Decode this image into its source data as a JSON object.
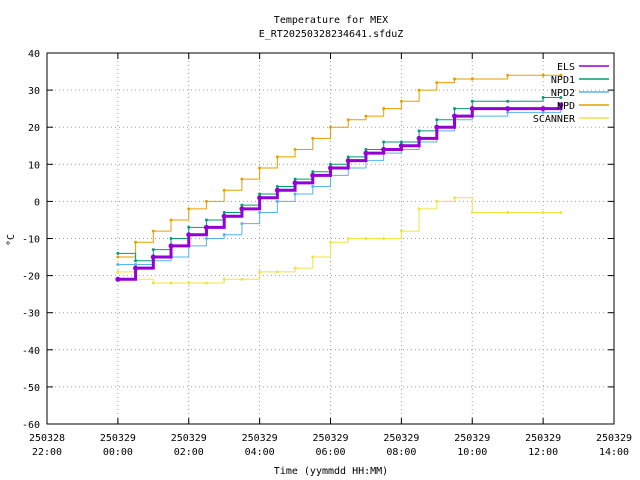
{
  "chart_data": {
    "type": "line",
    "title": "Temperature for MEX",
    "subtitle": "E_RT20250328234641.sfduZ",
    "xlabel": "Time (yymmdd HH:MM)",
    "ylabel": "°C",
    "xlim": [
      "2025-03-28 22:00",
      "2025-03-29 14:00"
    ],
    "ylim": [
      -60,
      40
    ],
    "grid": true,
    "legend_position": "top-right",
    "x_ticks": [
      {
        "date": "250328",
        "time": "22:00"
      },
      {
        "date": "250329",
        "time": "00:00"
      },
      {
        "date": "250329",
        "time": "02:00"
      },
      {
        "date": "250329",
        "time": "04:00"
      },
      {
        "date": "250329",
        "time": "06:00"
      },
      {
        "date": "250329",
        "time": "08:00"
      },
      {
        "date": "250329",
        "time": "10:00"
      },
      {
        "date": "250329",
        "time": "12:00"
      },
      {
        "date": "250329",
        "time": "14:00"
      }
    ],
    "y_ticks": [
      "40",
      "30",
      "20",
      "10",
      "0",
      "-10",
      "-20",
      "-30",
      "-40",
      "-50",
      "-60"
    ],
    "series": [
      {
        "name": "ELS",
        "color": "#9400d3",
        "x": [
          "2025-03-29 00:00",
          "2025-03-29 00:30",
          "2025-03-29 01:00",
          "2025-03-29 01:30",
          "2025-03-29 02:00",
          "2025-03-29 02:30",
          "2025-03-29 03:00",
          "2025-03-29 03:30",
          "2025-03-29 04:00",
          "2025-03-29 04:30",
          "2025-03-29 05:00",
          "2025-03-29 05:30",
          "2025-03-29 06:00",
          "2025-03-29 06:30",
          "2025-03-29 07:00",
          "2025-03-29 07:30",
          "2025-03-29 08:00",
          "2025-03-29 08:30",
          "2025-03-29 09:00",
          "2025-03-29 09:30",
          "2025-03-29 10:00",
          "2025-03-29 11:00",
          "2025-03-29 12:00",
          "2025-03-29 12:30"
        ],
        "y": [
          -21,
          -18,
          -15,
          -12,
          -9,
          -7,
          -4,
          -2,
          1,
          3,
          5,
          7,
          9,
          11,
          13,
          14,
          15,
          17,
          20,
          23,
          25,
          25,
          25,
          26
        ]
      },
      {
        "name": "NPD1",
        "color": "#009e73",
        "x": [
          "2025-03-29 00:00",
          "2025-03-29 00:30",
          "2025-03-29 01:00",
          "2025-03-29 01:30",
          "2025-03-29 02:00",
          "2025-03-29 02:30",
          "2025-03-29 03:00",
          "2025-03-29 03:30",
          "2025-03-29 04:00",
          "2025-03-29 04:30",
          "2025-03-29 05:00",
          "2025-03-29 05:30",
          "2025-03-29 06:00",
          "2025-03-29 06:30",
          "2025-03-29 07:00",
          "2025-03-29 07:30",
          "2025-03-29 08:00",
          "2025-03-29 08:30",
          "2025-03-29 09:00",
          "2025-03-29 09:30",
          "2025-03-29 10:00",
          "2025-03-29 11:00",
          "2025-03-29 12:00",
          "2025-03-29 12:30"
        ],
        "y": [
          -14,
          -16,
          -13,
          -10,
          -7,
          -5,
          -3,
          -1,
          2,
          4,
          6,
          8,
          10,
          12,
          14,
          16,
          16,
          19,
          22,
          25,
          27,
          27,
          28,
          28
        ]
      },
      {
        "name": "NPD2",
        "color": "#56b4e9",
        "x": [
          "2025-03-29 00:00",
          "2025-03-29 00:30",
          "2025-03-29 01:00",
          "2025-03-29 01:30",
          "2025-03-29 02:00",
          "2025-03-29 02:30",
          "2025-03-29 03:00",
          "2025-03-29 03:30",
          "2025-03-29 04:00",
          "2025-03-29 04:30",
          "2025-03-29 05:00",
          "2025-03-29 05:30",
          "2025-03-29 06:00",
          "2025-03-29 06:30",
          "2025-03-29 07:00",
          "2025-03-29 07:30",
          "2025-03-29 08:00",
          "2025-03-29 08:30",
          "2025-03-29 09:00",
          "2025-03-29 09:30",
          "2025-03-29 10:00",
          "2025-03-29 11:00",
          "2025-03-29 12:00",
          "2025-03-29 12:30"
        ],
        "y": [
          -17,
          -17,
          -16,
          -15,
          -12,
          -10,
          -9,
          -6,
          -3,
          0,
          2,
          4,
          7,
          9,
          11,
          13,
          14,
          16,
          19,
          22,
          23,
          24,
          24,
          25
        ]
      },
      {
        "name": "NPD",
        "color": "#e69f00",
        "x": [
          "2025-03-29 00:00",
          "2025-03-29 00:30",
          "2025-03-29 01:00",
          "2025-03-29 01:30",
          "2025-03-29 02:00",
          "2025-03-29 02:30",
          "2025-03-29 03:00",
          "2025-03-29 03:30",
          "2025-03-29 04:00",
          "2025-03-29 04:30",
          "2025-03-29 05:00",
          "2025-03-29 05:30",
          "2025-03-29 06:00",
          "2025-03-29 06:30",
          "2025-03-29 07:00",
          "2025-03-29 07:30",
          "2025-03-29 08:00",
          "2025-03-29 08:30",
          "2025-03-29 09:00",
          "2025-03-29 09:30",
          "2025-03-29 10:00",
          "2025-03-29 11:00",
          "2025-03-29 12:00",
          "2025-03-29 12:30"
        ],
        "y": [
          -15,
          -11,
          -8,
          -5,
          -2,
          0,
          3,
          6,
          9,
          12,
          14,
          17,
          20,
          22,
          23,
          25,
          27,
          30,
          32,
          33,
          33,
          34,
          34,
          34
        ]
      },
      {
        "name": "SCANNER",
        "color": "#f0e442",
        "x": [
          "2025-03-29 00:00",
          "2025-03-29 00:30",
          "2025-03-29 01:00",
          "2025-03-29 01:30",
          "2025-03-29 02:00",
          "2025-03-29 02:30",
          "2025-03-29 03:00",
          "2025-03-29 03:30",
          "2025-03-29 04:00",
          "2025-03-29 04:30",
          "2025-03-29 05:00",
          "2025-03-29 05:30",
          "2025-03-29 06:00",
          "2025-03-29 06:30",
          "2025-03-29 07:00",
          "2025-03-29 07:30",
          "2025-03-29 08:00",
          "2025-03-29 08:30",
          "2025-03-29 09:00",
          "2025-03-29 09:30",
          "2025-03-29 10:00",
          "2025-03-29 11:00",
          "2025-03-29 12:00",
          "2025-03-29 12:30"
        ],
        "y": [
          -19,
          -21,
          -22,
          -22,
          -22,
          -22,
          -21,
          -21,
          -19,
          -19,
          -18,
          -15,
          -11,
          -10,
          -10,
          -10,
          -8,
          -2,
          0,
          1,
          -3,
          -3,
          -3,
          -3
        ]
      }
    ]
  }
}
